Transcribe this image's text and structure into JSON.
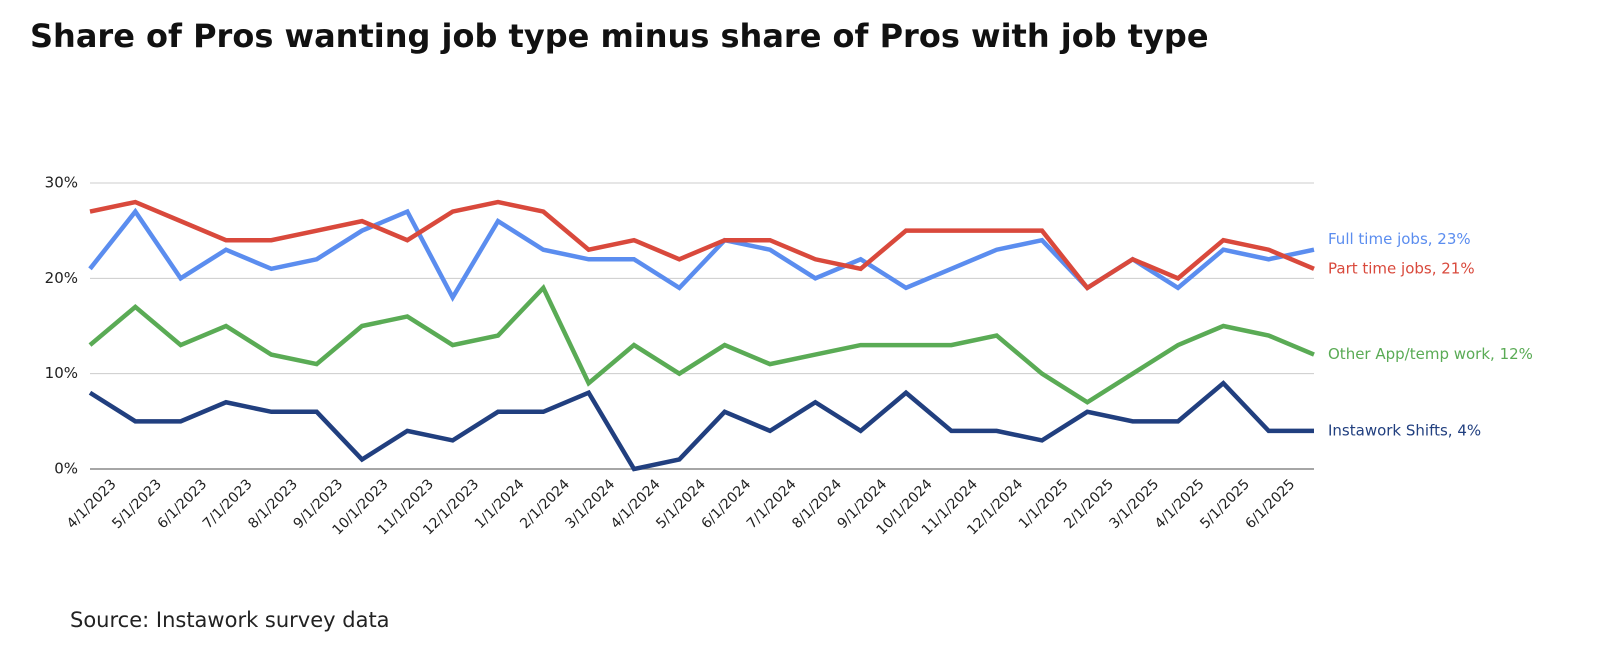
{
  "chart_data": {
    "type": "line",
    "title": "Share of Pros wanting job type minus share of Pros with job type",
    "source": "Source: Instawork survey data",
    "categories": [
      "4/1/2023",
      "5/1/2023",
      "6/1/2023",
      "7/1/2023",
      "8/1/2023",
      "9/1/2023",
      "10/1/2023",
      "11/1/2023",
      "12/1/2023",
      "1/1/2024",
      "2/1/2024",
      "3/1/2024",
      "4/1/2024",
      "5/1/2024",
      "6/1/2024",
      "7/1/2024",
      "8/1/2024",
      "9/1/2024",
      "10/1/2024",
      "11/1/2024",
      "12/1/2024",
      "1/1/2025",
      "2/1/2025",
      "3/1/2025",
      "4/1/2025",
      "5/1/2025",
      "6/1/2025",
      null
    ],
    "series": [
      {
        "name": "Full time jobs",
        "end_label": "Full time jobs, 23%",
        "color": "#5b8def",
        "values": [
          21,
          27,
          20,
          23,
          21,
          22,
          25,
          27,
          18,
          26,
          23,
          22,
          22,
          19,
          24,
          23,
          20,
          22,
          19,
          21,
          23,
          24,
          19,
          22,
          19,
          23,
          22,
          23
        ]
      },
      {
        "name": "Part time jobs",
        "end_label": "Part time jobs, 21%",
        "color": "#d9493c",
        "values": [
          27,
          28,
          26,
          24,
          24,
          25,
          26,
          24,
          27,
          28,
          27,
          23,
          24,
          22,
          24,
          24,
          22,
          21,
          25,
          25,
          25,
          25,
          19,
          22,
          20,
          24,
          23,
          21
        ]
      },
      {
        "name": "Other App/temp work",
        "end_label": "Other App/temp work, 12%",
        "color": "#5aab55",
        "values": [
          13,
          17,
          13,
          15,
          12,
          11,
          15,
          16,
          13,
          14,
          19,
          9,
          13,
          10,
          13,
          11,
          12,
          13,
          13,
          13,
          14,
          10,
          7,
          10,
          13,
          15,
          14,
          12
        ]
      },
      {
        "name": "Instawork Shifts",
        "end_label": "Instawork Shifts, 4%",
        "color": "#213f7f",
        "values": [
          8,
          5,
          5,
          7,
          6,
          6,
          1,
          4,
          3,
          6,
          6,
          8,
          0,
          1,
          6,
          4,
          7,
          4,
          8,
          4,
          4,
          3,
          6,
          5,
          5,
          9,
          4,
          4
        ]
      }
    ],
    "ylim": [
      0,
      30
    ],
    "yticks": [
      {
        "value": 0,
        "label": "0%"
      },
      {
        "value": 10,
        "label": "10%"
      },
      {
        "value": 20,
        "label": "20%"
      },
      {
        "value": 30,
        "label": "30%"
      }
    ],
    "grid": true
  }
}
